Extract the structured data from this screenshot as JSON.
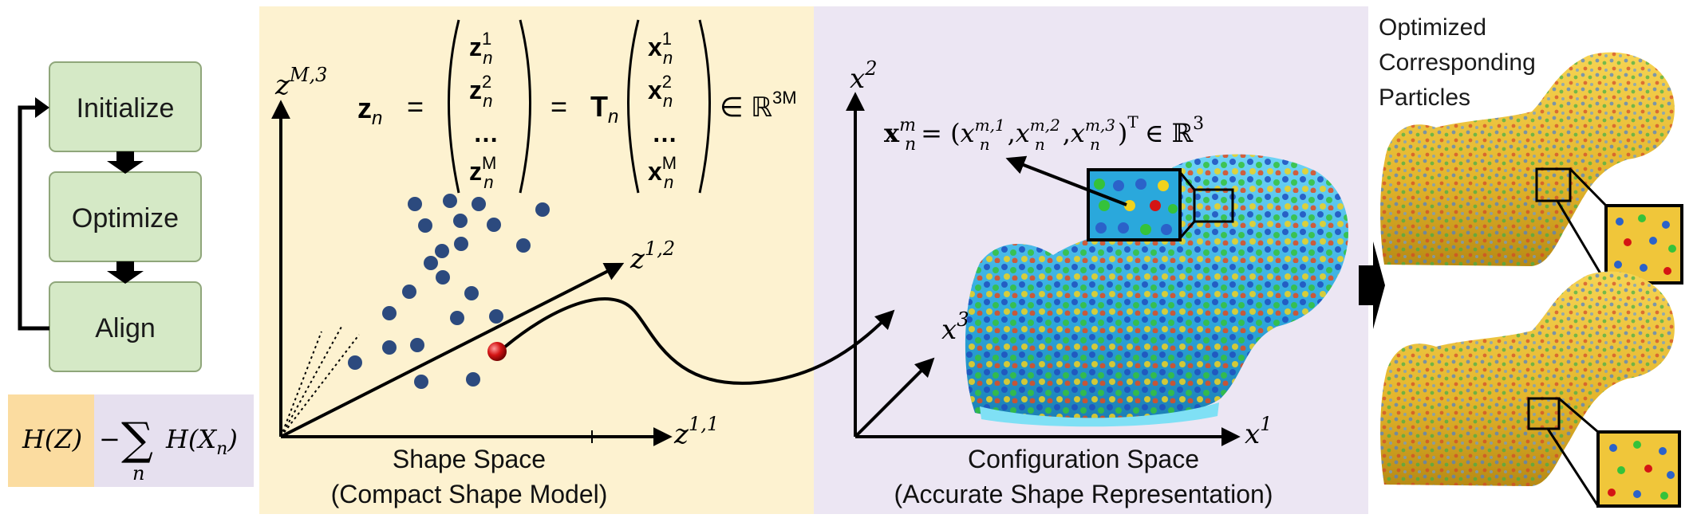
{
  "workflow": {
    "steps": [
      {
        "label": "Initialize"
      },
      {
        "label": "Optimize"
      },
      {
        "label": "Align"
      }
    ]
  },
  "objective": {
    "left_term": "H(Z)",
    "minus": "−",
    "sum_symbol": "∑",
    "sum_index": "n",
    "right_term": "H(X",
    "right_sub": "n",
    "right_close": ")"
  },
  "shape_space": {
    "title": "Shape Space",
    "subtitle": "(Compact Shape Model)",
    "axis_vertical": "z",
    "axis_vertical_sup": "M,3",
    "axis_diagonal": "z",
    "axis_diagonal_sup": "1,2",
    "axis_horizontal": "z",
    "axis_horizontal_sup": "1,1",
    "equation": {
      "lhs": "z",
      "lhs_sub": "n",
      "eq": "=",
      "vec_z": [
        {
          "base": "z",
          "sub": "n",
          "sup": "1"
        },
        {
          "base": "z",
          "sub": "n",
          "sup": "2"
        },
        {
          "base": "…",
          "sub": "",
          "sup": ""
        },
        {
          "base": "z",
          "sub": "n",
          "sup": "M"
        }
      ],
      "eq2": "=",
      "T": "T",
      "T_sub": "n",
      "vec_x": [
        {
          "base": "x",
          "sub": "n",
          "sup": "1"
        },
        {
          "base": "x",
          "sub": "n",
          "sup": "2"
        },
        {
          "base": "…",
          "sub": "",
          "sup": ""
        },
        {
          "base": "x",
          "sub": "n",
          "sup": "M"
        }
      ],
      "in": "∈ ℝ",
      "dim": "3M"
    }
  },
  "config_space": {
    "title": "Configuration Space",
    "subtitle": "(Accurate Shape Representation)",
    "axis_vertical": "x",
    "axis_vertical_sup": "2",
    "axis_diagonal": "x",
    "axis_diagonal_sup": "3",
    "axis_horizontal": "x",
    "axis_horizontal_sup": "1",
    "equation": {
      "lhs": "x",
      "lhs_sub": "n",
      "lhs_sup": "m",
      "eq": "= (",
      "c1": "x",
      "c1_sub": "n",
      "c1_sup": "m,1",
      "c2": "x",
      "c2_sub": "n",
      "c2_sup": "m,2",
      "c3": "x",
      "c3_sub": "n",
      "c3_sup": "m,3",
      "close": ")",
      "T": "T",
      "in": "∈ ℝ",
      "dim": "3"
    }
  },
  "optimized": {
    "label_lines": [
      "Optimized",
      "Corresponding",
      "Particles"
    ]
  },
  "colors": {
    "shape_space_bg": "#fdf2d0",
    "config_space_bg": "#ece6f3",
    "flow_box": "#d5e9c6",
    "dots": "#2c4a7e",
    "highlight": "#d41414",
    "bone_blue": "#2fb4e6",
    "bone_yellow": "#e9c035"
  }
}
